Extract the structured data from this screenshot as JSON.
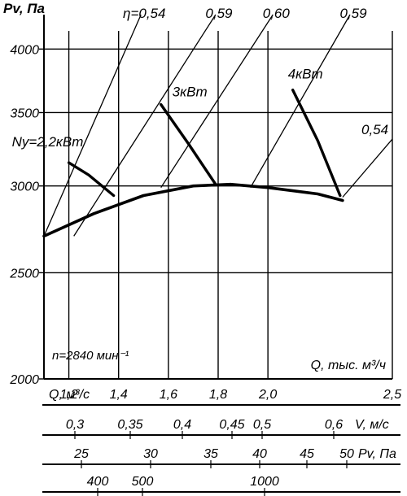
{
  "chart_data": {
    "type": "line",
    "y_axis": {
      "label": "Pv, Па",
      "scale": "log",
      "ticks": [
        2000,
        2500,
        3000,
        3500,
        4000
      ],
      "range": [
        2000,
        4300
      ]
    },
    "x_axis": {
      "label": "Q, тыс. м³/ч",
      "range": [
        1.1,
        2.5
      ],
      "ticks": [
        1.2,
        1.4,
        1.6,
        1.8,
        2.0,
        2.5
      ],
      "tick_labels": [
        "1,2",
        "1,4",
        "1,6",
        "1,8",
        "2,0",
        "2,5"
      ],
      "annotation": "n=2840 мин⁻¹"
    },
    "scales": [
      {
        "label": "Q, м³/с",
        "ticks": [],
        "tick_labels": []
      },
      {
        "label": "V, м/с",
        "ticks": [
          0.3,
          0.35,
          0.4,
          0.45,
          0.5,
          0.6
        ],
        "tick_labels": [
          "0,3",
          "0,35",
          "0,4",
          "0,45",
          "0,5",
          "0,6"
        ]
      },
      {
        "label": "Pv, Па",
        "ticks": [
          25,
          30,
          35,
          40,
          45,
          50
        ],
        "tick_labels": [
          "25",
          "30",
          "35",
          "40",
          "45",
          "50"
        ]
      },
      {
        "label": "",
        "ticks": [
          400,
          500,
          1000
        ],
        "tick_labels": [
          "400",
          "500",
          "1000"
        ]
      }
    ],
    "pressure_curve": {
      "x": [
        1.1,
        1.3,
        1.5,
        1.7,
        1.85,
        2.0,
        2.2,
        2.3
      ],
      "y": [
        2700,
        2830,
        2940,
        3000,
        3010,
        2990,
        2950,
        2910
      ]
    },
    "efficiency_lines": [
      {
        "label": "η=0,54",
        "x": [
          1.1,
          1.49
        ],
        "y": [
          2700,
          4300
        ]
      },
      {
        "label": "0,59",
        "x": [
          1.22,
          1.79
        ],
        "y": [
          2700,
          4300
        ]
      },
      {
        "label": "0,60",
        "x": [
          1.57,
          2.02
        ],
        "y": [
          2990,
          4300
        ]
      },
      {
        "label": "0,59",
        "x": [
          1.93,
          2.33
        ],
        "y": [
          2990,
          4300
        ]
      },
      {
        "label": "0,54",
        "x": [
          2.3,
          2.5
        ],
        "y": [
          2930,
          3310
        ]
      }
    ],
    "power_curves": [
      {
        "label": "Ny=2,2кВт",
        "x": [
          1.2,
          1.28,
          1.38
        ],
        "y": [
          3150,
          3070,
          2940
        ]
      },
      {
        "label": "3кВт",
        "x": [
          1.57,
          1.68,
          1.79
        ],
        "y": [
          3560,
          3280,
          3010
        ]
      },
      {
        "label": "4кВт",
        "x": [
          2.1,
          2.2,
          2.29
        ],
        "y": [
          3670,
          3300,
          2940
        ]
      }
    ]
  }
}
